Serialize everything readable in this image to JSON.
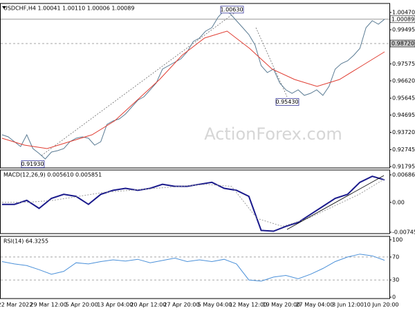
{
  "chart_data": [
    {
      "type": "line",
      "title": "USDCHF,H4 1.00041 1.00110 1.00006 1.00089",
      "watermark": "ActionForex.com",
      "ylim": [
        0.91717,
        1.00976
      ],
      "yticks": [
        {
          "value": 1.0047,
          "label": "1.00470"
        },
        {
          "value": 0.99495,
          "label": "0.99495"
        },
        {
          "value": 0.97575,
          "label": "0.97575"
        },
        {
          "value": 0.9662,
          "label": "0.96620"
        },
        {
          "value": 0.95645,
          "label": "0.95645"
        },
        {
          "value": 0.94695,
          "label": "0.94695"
        },
        {
          "value": 0.9372,
          "label": "0.93720"
        },
        {
          "value": 0.92745,
          "label": "0.92745"
        },
        {
          "value": 0.91795,
          "label": "0.91795"
        }
      ],
      "levels": [
        {
          "value": 1.00089,
          "label": "1.00089"
        },
        {
          "value": 0.9872,
          "label": "0.98720"
        }
      ],
      "annotations": [
        {
          "value": 1.0063,
          "label": "1.00630"
        },
        {
          "value": 0.9543,
          "label": "0.95430"
        },
        {
          "value": 0.9193,
          "label": "0.91930"
        }
      ],
      "series": [
        {
          "color": "#5a7b93",
          "values": [
            0.93585,
            0.93468,
            0.93196,
            0.92923,
            0.93585,
            0.92807,
            0.92534,
            0.92223,
            0.92612,
            0.9269,
            0.92807,
            0.93196,
            0.9339,
            0.93468,
            0.9339,
            0.93001,
            0.93196,
            0.94168,
            0.94363,
            0.94479,
            0.94752,
            0.95141,
            0.9553,
            0.95724,
            0.96113,
            0.96502,
            0.9728,
            0.97475,
            0.97669,
            0.97864,
            0.98253,
            0.98836,
            0.99031,
            0.9942,
            0.99614,
            1.00198,
            1.00587,
            1.00392,
            1.00003,
            0.99614,
            0.99225,
            0.98642,
            0.97475,
            0.97086,
            0.9728,
            0.96502,
            0.96113,
            0.95919,
            0.96113,
            0.95802,
            0.95919,
            0.96113,
            0.95802,
            0.96308,
            0.9728,
            0.97591,
            0.97747,
            0.98058,
            0.98447,
            0.99614,
            1.00003,
            0.99809,
            1.00089
          ]
        },
        {
          "color": "#e03c31",
          "values": [
            0.9339,
            0.93001,
            0.92807,
            0.93196,
            0.93585,
            0.94363,
            0.9553,
            0.96697,
            0.98058,
            0.99031,
            0.9942,
            0.98447,
            0.9728,
            0.96697,
            0.96308,
            0.96697,
            0.97475,
            0.98253
          ]
        }
      ]
    },
    {
      "type": "line",
      "title": "MACD(12,26,9) 0.005610 0.005851",
      "ylim": [
        -0.0078,
        0.00807
      ],
      "yticks": [
        0.006861,
        {
          "value": 0,
          "label": "0.00"
        },
        -0.007454
      ],
      "series": [
        {
          "color": "#1a1a8c",
          "values": [
            -0.0005,
            -0.0005,
            0.0005,
            -0.0015,
            0.001,
            0.002,
            0.0015,
            -0.0005,
            0.002,
            0.003,
            0.0035,
            0.003,
            0.0035,
            0.0045,
            0.004,
            0.004,
            0.0045,
            0.005,
            0.0035,
            0.003,
            0.0015,
            -0.007,
            -0.0072,
            -0.006,
            -0.005,
            -0.003,
            -0.001,
            0.001,
            0.002,
            0.005,
            0.0065,
            0.00561
          ]
        },
        {
          "color": "#9a9a9a",
          "values": [
            0,
            0,
            0.0005,
            0.0015,
            0.0025,
            0.003,
            0.0035,
            0.004,
            0.0045,
            0.004,
            -0.004,
            -0.006,
            -0.004,
            -0.001,
            0.002,
            0.005851
          ]
        }
      ]
    },
    {
      "type": "line",
      "title": "RSI(14) 64.3255",
      "ylim": [
        -2.4,
        106
      ],
      "yticks": [
        100,
        70,
        30,
        0
      ],
      "levels": [
        70,
        30
      ],
      "x_labels": [
        "22 Mar 2022",
        "29 Mar 12:00",
        "5 Apr 20:00",
        "13 Apr 04:00",
        "20 Apr 12:00",
        "27 Apr 20:00",
        "5 May 04:00",
        "12 May 12:00",
        "19 May 20:00",
        "27 May 04:00",
        "3 Jun 12:00",
        "10 Jun 20:00"
      ],
      "series": [
        {
          "color": "#4a90d9",
          "values": [
            62,
            58,
            55,
            48,
            40,
            45,
            60,
            58,
            62,
            65,
            63,
            66,
            60,
            64,
            68,
            62,
            65,
            62,
            66,
            58,
            30,
            28,
            35,
            38,
            32,
            40,
            50,
            62,
            70,
            75,
            72,
            64.3255
          ]
        }
      ]
    }
  ]
}
